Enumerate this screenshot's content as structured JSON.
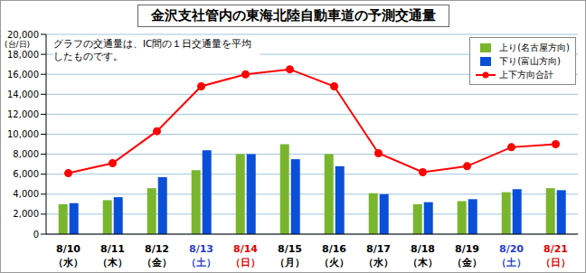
{
  "chart_data": {
    "type": "bar",
    "title": "金沢支社管内の東海北陸自動車道の予測交通量",
    "y_label": "(台/日)",
    "annotations": [
      "グラフの交通量は、IC間の１日交通量を平均したものです。"
    ],
    "categories": [
      "8/10（水）",
      "8/11（木）",
      "8/12（金）",
      "8/13（土）",
      "8/14（日）",
      "8/15（月）",
      "8/16（火）",
      "8/17（水）",
      "8/18（木）",
      "8/19（金）",
      "8/20（土）",
      "8/21（日）"
    ],
    "category_colors": [
      "#000000",
      "#000000",
      "#000000",
      "#1f3fd0",
      "#e00000",
      "#000000",
      "#000000",
      "#000000",
      "#000000",
      "#000000",
      "#1f3fd0",
      "#e00000"
    ],
    "series": [
      {
        "name": "上り(名古屋方向)",
        "type": "bar",
        "color": "#7ab52e",
        "values": [
          3000,
          3400,
          4600,
          6400,
          8000,
          9000,
          8000,
          4100,
          3000,
          3300,
          4200,
          4600
        ]
      },
      {
        "name": "下り(富山方向)",
        "type": "bar",
        "color": "#0a4fd8",
        "values": [
          3100,
          3700,
          5700,
          8400,
          8000,
          7500,
          6800,
          4000,
          3200,
          3500,
          4500,
          4400
        ]
      },
      {
        "name": "上下方向合計",
        "type": "line",
        "color": "#ff0000",
        "marker": "circle",
        "values": [
          6100,
          7100,
          10300,
          14800,
          16000,
          16500,
          14800,
          8100,
          6200,
          6800,
          8700,
          9000
        ]
      }
    ],
    "ylim": [
      0,
      20000
    ],
    "yticks": [
      0,
      {
        "value": 2000,
        "label": "2,000"
      },
      {
        "value": 4000,
        "label": "4,000"
      },
      {
        "value": 6000,
        "label": "6,000"
      },
      {
        "value": 8000,
        "label": "8,000"
      },
      {
        "value": 10000,
        "label": "10,000"
      },
      {
        "value": 12000,
        "label": "12,000"
      },
      {
        "value": 14000,
        "label": "14,000"
      },
      {
        "value": 16000,
        "label": "16,000"
      },
      {
        "value": 18000,
        "label": "18,000"
      },
      {
        "value": 20000,
        "label": "20,000"
      }
    ],
    "grid": true,
    "legend": "upper right"
  }
}
